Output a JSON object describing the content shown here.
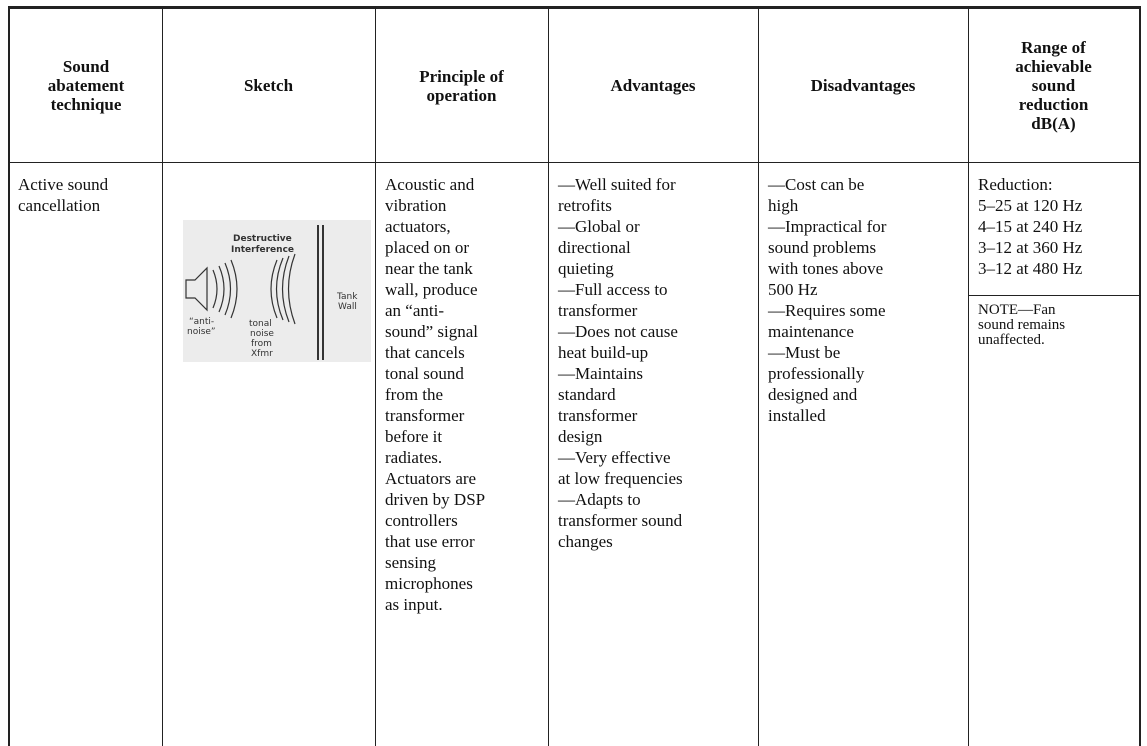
{
  "table": {
    "header": [
      [
        "Sound",
        "abatement",
        "technique"
      ],
      [
        "Sketch"
      ],
      [
        "Principle of",
        "operation"
      ],
      [
        "Advantages"
      ],
      [
        "Disadvantages"
      ],
      [
        "Range of",
        "achievable",
        "sound",
        "reduction",
        "dB(A)"
      ]
    ],
    "rows": [
      {
        "technique": [
          "Active sound",
          "cancellation"
        ],
        "sketch": {
          "title": [
            "Destructive",
            "Interference"
          ],
          "wall": [
            "Tank",
            "Wall"
          ],
          "anti_noise": [
            "“anti-",
            "noise”"
          ],
          "tonal": [
            "tonal",
            "noise",
            "from",
            "Xfmr"
          ]
        },
        "principle": [
          "Acoustic and",
          "vibration",
          "actuators,",
          "placed on or",
          "near the tank",
          "wall, produce",
          "an “anti-",
          "sound” signal",
          "that cancels",
          "tonal sound",
          "from the",
          "transformer",
          "before it",
          "radiates.",
          "Actuators are",
          "driven by DSP",
          "controllers",
          "that use error",
          "sensing",
          "microphones",
          "as input."
        ],
        "advantages": [
          "—Well suited for",
          "retrofits",
          "—Global or",
          "directional",
          "quieting",
          "—Full access to",
          "transformer",
          "—Does not cause",
          "heat build-up",
          "—Maintains",
          "standard",
          "transformer",
          "design",
          "—Very effective",
          "at low frequencies",
          "—Adapts to",
          "transformer sound",
          "changes"
        ],
        "disadvantages": [
          "—Cost can be",
          "high",
          "—Impractical for",
          "sound problems",
          "with tones above",
          "500 Hz",
          "—Requires some",
          "maintenance",
          "—Must be",
          "professionally",
          "designed and",
          "installed"
        ],
        "range": [
          "Reduction:",
          "5–25 at 120 Hz",
          "4–15 at 240 Hz",
          "3–12 at 360 Hz",
          "3–12 at 480 Hz"
        ],
        "note": [
          "NOTE—Fan",
          "sound remains",
          "unaffected."
        ]
      }
    ]
  }
}
